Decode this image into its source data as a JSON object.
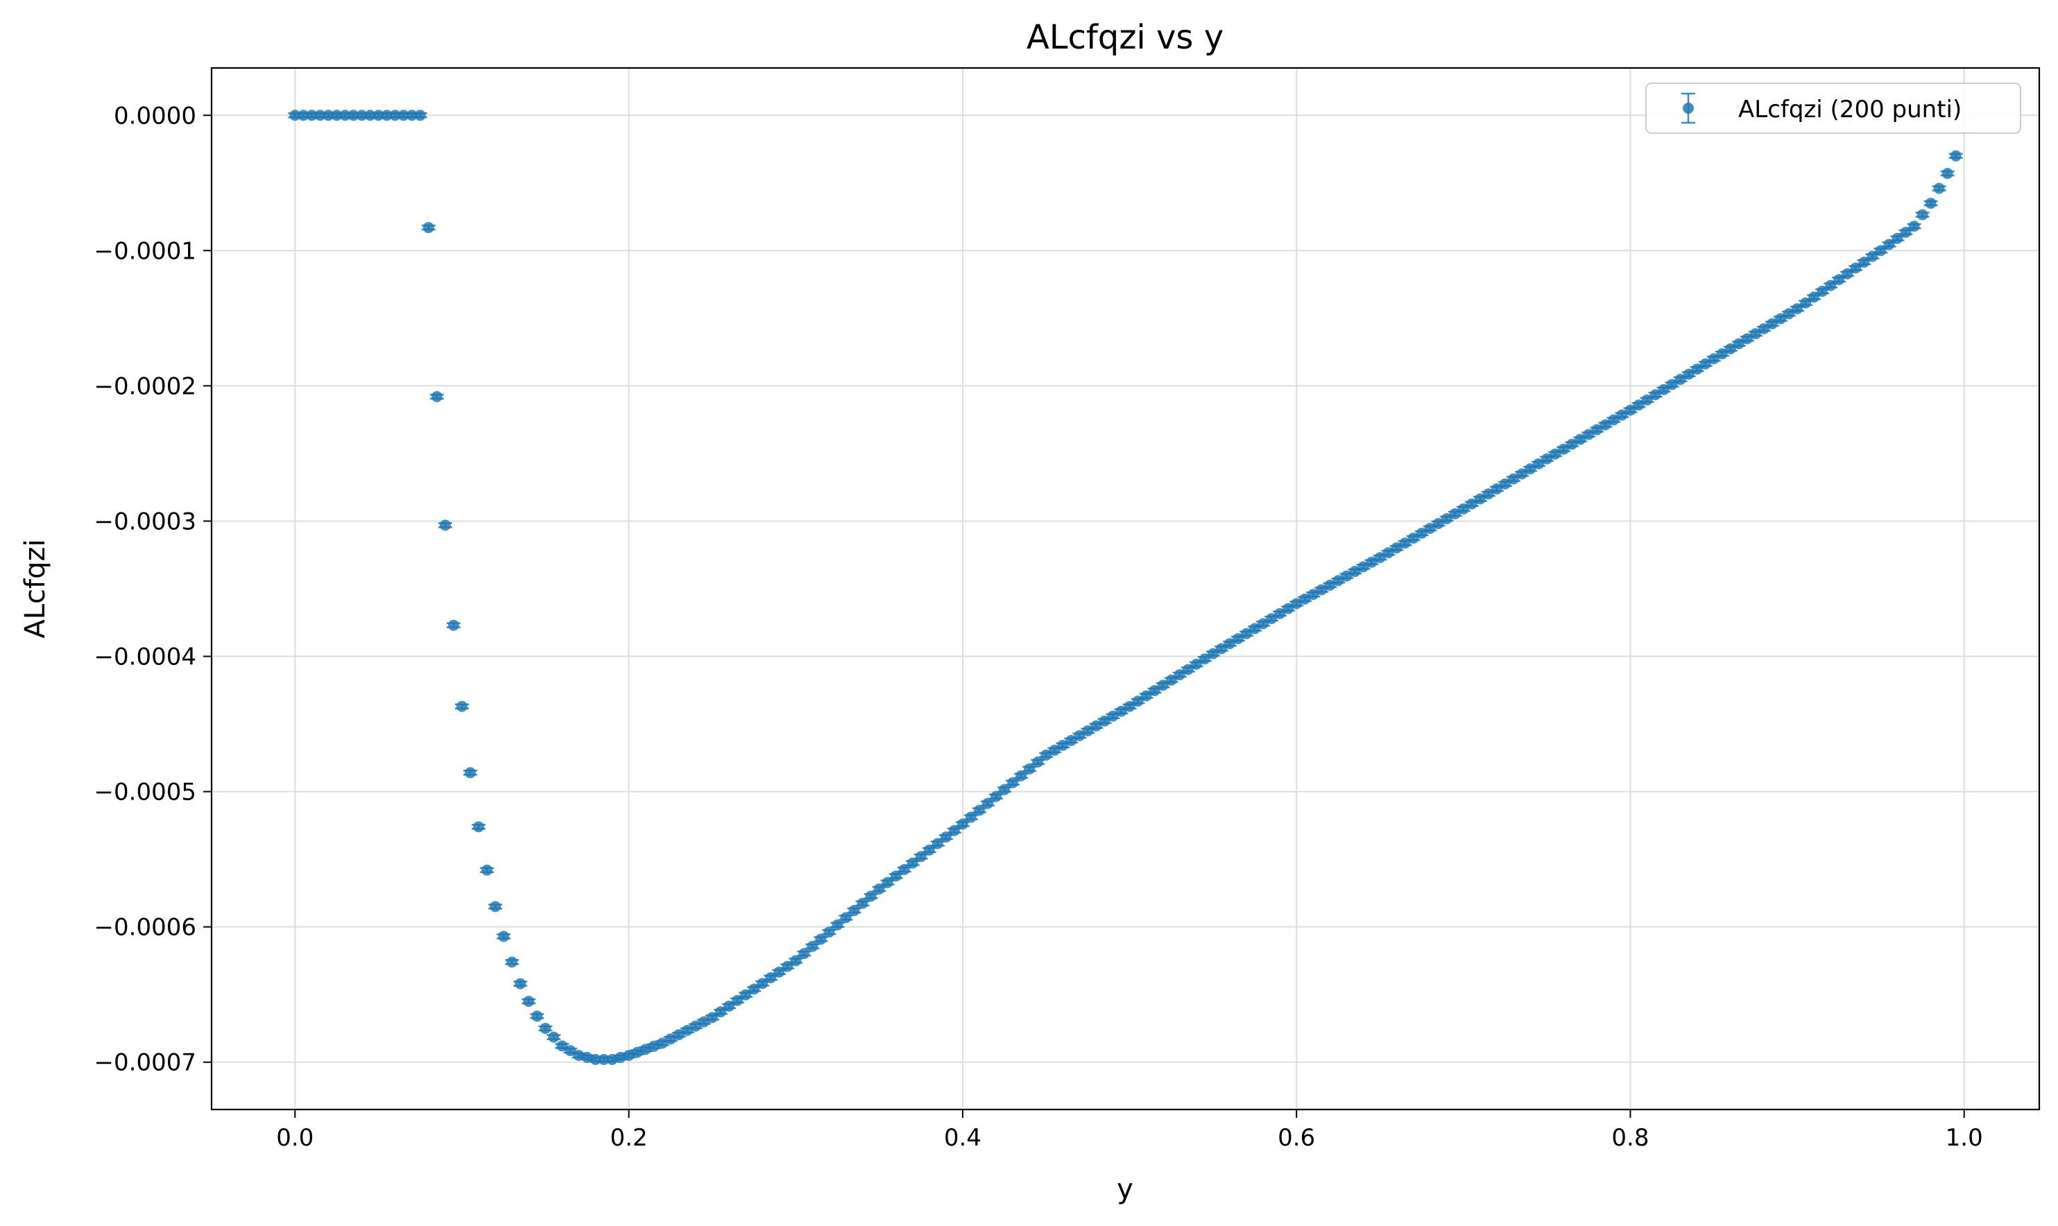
{
  "colors": {
    "series": "#1f77b4",
    "grid": "#dddddd",
    "axes": "#000000",
    "background": "#ffffff"
  },
  "chart_data": {
    "type": "scatter",
    "title": "ALcfqzi vs y",
    "xlabel": "y",
    "ylabel": "ALcfqzi",
    "xlim": [
      -0.05,
      1.045
    ],
    "ylim": [
      -0.000735,
      3.5e-05
    ],
    "xticks": [
      0.0,
      0.2,
      0.4,
      0.6,
      0.8,
      1.0
    ],
    "xtick_labels": [
      "0.0",
      "0.2",
      "0.4",
      "0.6",
      "0.8",
      "1.0"
    ],
    "yticks": [
      0.0,
      -0.0001,
      -0.0002,
      -0.0003,
      -0.0004,
      -0.0005,
      -0.0006,
      -0.0007
    ],
    "ytick_labels": [
      "0.0000",
      "−0.0001",
      "−0.0002",
      "−0.0003",
      "−0.0004",
      "−0.0005",
      "−0.0006",
      "−0.0007"
    ],
    "grid": true,
    "legend": {
      "position": "top-right",
      "marker": "errorbar-point"
    },
    "series": [
      {
        "name": "ALcfqzi (200 punti)",
        "marker": "circle",
        "error_bars": true,
        "x_start": 0.0,
        "x_step": 0.005,
        "count": 200,
        "control_points": [
          [
            0.0,
            0.0
          ],
          [
            0.075,
            0.0
          ],
          [
            0.08,
            -8.3e-05
          ],
          [
            0.085,
            -0.000208
          ],
          [
            0.09,
            -0.000303
          ],
          [
            0.095,
            -0.000377
          ],
          [
            0.1,
            -0.000437
          ],
          [
            0.105,
            -0.000486
          ],
          [
            0.11,
            -0.000526
          ],
          [
            0.115,
            -0.000558
          ],
          [
            0.12,
            -0.000585
          ],
          [
            0.125,
            -0.000607
          ],
          [
            0.13,
            -0.000626
          ],
          [
            0.135,
            -0.000642
          ],
          [
            0.14,
            -0.000655
          ],
          [
            0.145,
            -0.000666
          ],
          [
            0.15,
            -0.000675
          ],
          [
            0.16,
            -0.000688
          ],
          [
            0.17,
            -0.000695
          ],
          [
            0.18,
            -0.000698
          ],
          [
            0.19,
            -0.000698
          ],
          [
            0.2,
            -0.000695
          ],
          [
            0.22,
            -0.000686
          ],
          [
            0.25,
            -0.000667
          ],
          [
            0.3,
            -0.000625
          ],
          [
            0.35,
            -0.000572
          ],
          [
            0.4,
            -0.000524
          ],
          [
            0.45,
            -0.000473
          ],
          [
            0.5,
            -0.000437
          ],
          [
            0.55,
            -0.000398
          ],
          [
            0.6,
            -0.000361
          ],
          [
            0.65,
            -0.000327
          ],
          [
            0.7,
            -0.000291
          ],
          [
            0.75,
            -0.000254
          ],
          [
            0.8,
            -0.000218
          ],
          [
            0.85,
            -0.00018
          ],
          [
            0.9,
            -0.000143
          ],
          [
            0.95,
            -0.0001
          ],
          [
            0.97,
            -8.2e-05
          ],
          [
            0.98,
            -6.5e-05
          ],
          [
            0.99,
            -4.3e-05
          ],
          [
            0.995,
            -3e-05
          ]
        ]
      }
    ]
  }
}
